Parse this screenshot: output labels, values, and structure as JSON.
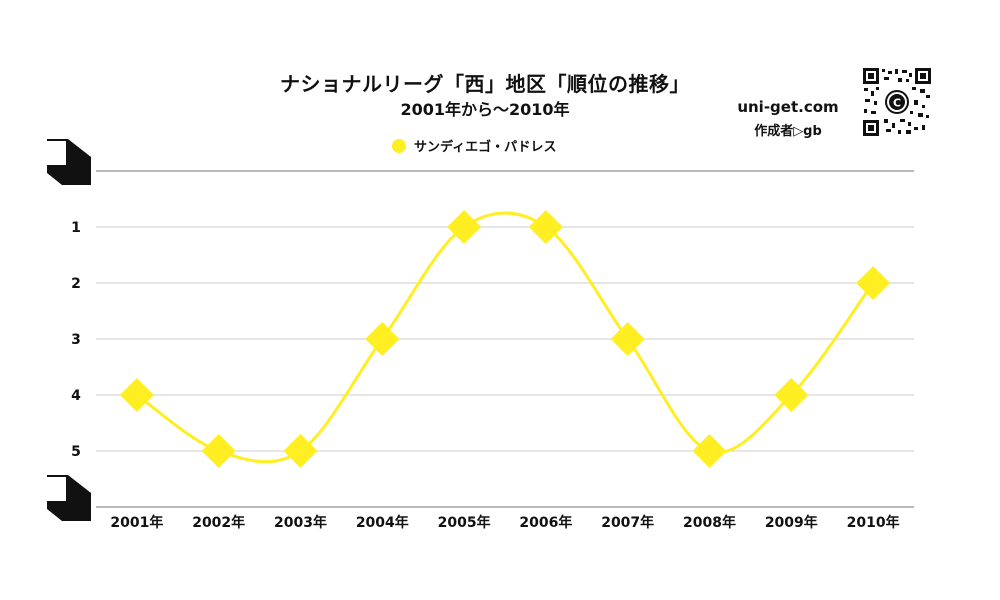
{
  "header": {
    "title": "ナショナルリーグ「西」地区「順位の推移」",
    "subtitle": "2001年から〜2010年"
  },
  "brand": {
    "site": "uni-get.com",
    "author": "作成者▷gb",
    "qr_center": "C"
  },
  "colors": {
    "series": "#ffee22",
    "grid": "#cccccc",
    "text": "#111111"
  },
  "chart_data": {
    "type": "line",
    "x": [
      "2001年",
      "2002年",
      "2003年",
      "2004年",
      "2005年",
      "2006年",
      "2007年",
      "2008年",
      "2009年",
      "2010年"
    ],
    "series": [
      {
        "name": "サンディエゴ・パドレス",
        "values": [
          4,
          5,
          5,
          3,
          1,
          1,
          3,
          5,
          4,
          2
        ],
        "marker": "diamond",
        "smooth": true
      }
    ],
    "yticks": [
      1,
      2,
      3,
      4,
      5
    ],
    "ylim": [
      0,
      6
    ],
    "y_reversed": true,
    "grid": true,
    "legend": "top-center"
  }
}
